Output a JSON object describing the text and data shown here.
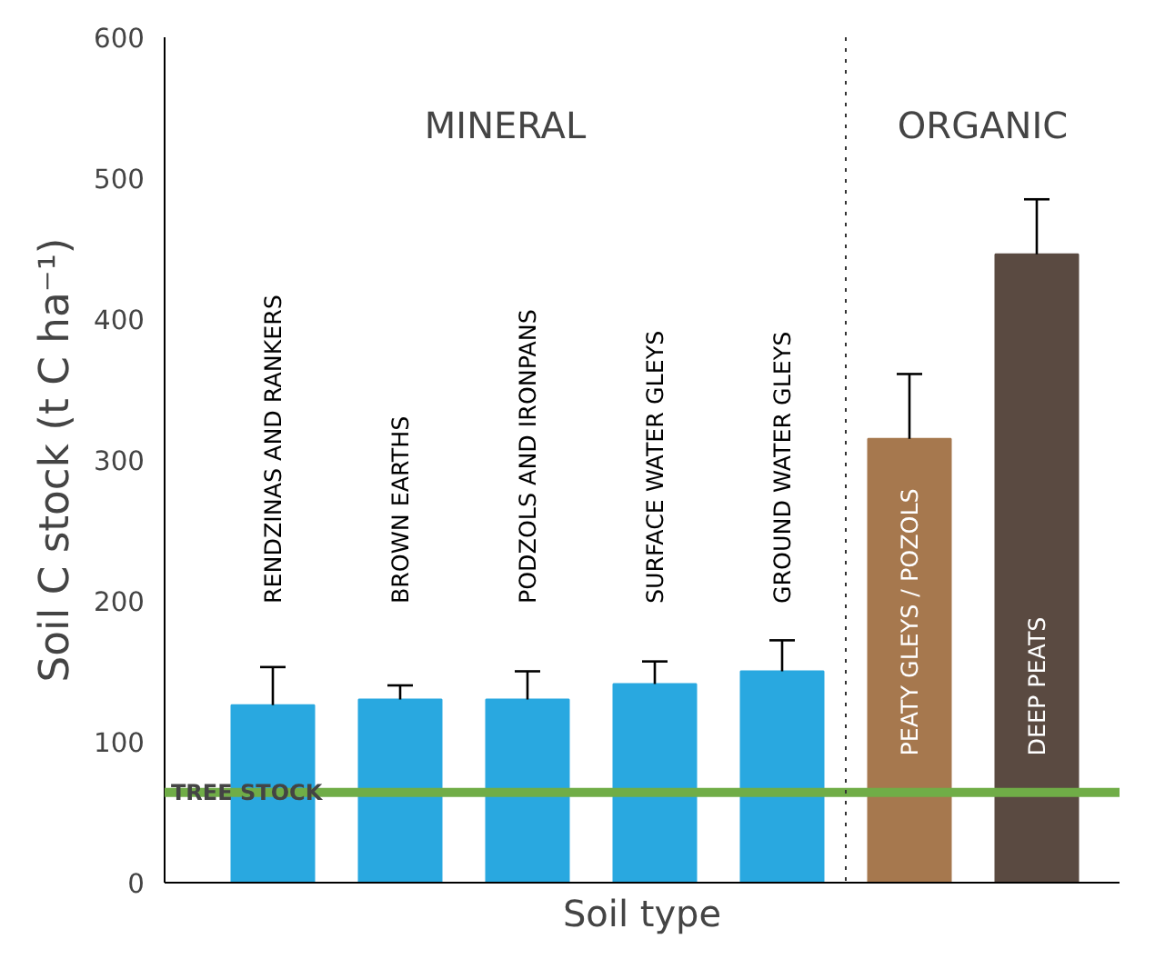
{
  "chart_data": {
    "type": "bar",
    "xlabel": "Soil type",
    "ylabel": "Soil C stock (t C ha⁻¹)",
    "categories": [
      "RENDZINAS AND RANKERS",
      "BROWN EARTHS",
      "PODZOLS AND IRONPANS",
      "SURFACE WATER GLEYS",
      "GROUND WATER GLEYS",
      "PEATY GLEYS / POZOLS",
      "DEEP PEATS"
    ],
    "values": [
      126,
      130,
      130,
      141,
      150,
      315,
      446
    ],
    "colors": [
      "#29a8e0",
      "#29a8e0",
      "#29a8e0",
      "#29a8e0",
      "#29a8e0",
      "#a6784e",
      "#5a4a41"
    ],
    "errors": [
      [
        126,
        153
      ],
      [
        130,
        140
      ],
      [
        130,
        150
      ],
      [
        141,
        157
      ],
      [
        150,
        172
      ],
      [
        315,
        361
      ],
      [
        446,
        485
      ]
    ],
    "ylim": [
      0,
      600
    ],
    "yticks": [
      0,
      100,
      200,
      300,
      400,
      500,
      600
    ],
    "ref_lines": [
      {
        "axis": "y",
        "value": 64,
        "label": "TREE STOCK",
        "color": "#70ad47",
        "line_style": "solid"
      }
    ],
    "annotations": [
      "MINERAL",
      "ORGANIC"
    ],
    "grid": false,
    "tick_labels": "y"
  }
}
